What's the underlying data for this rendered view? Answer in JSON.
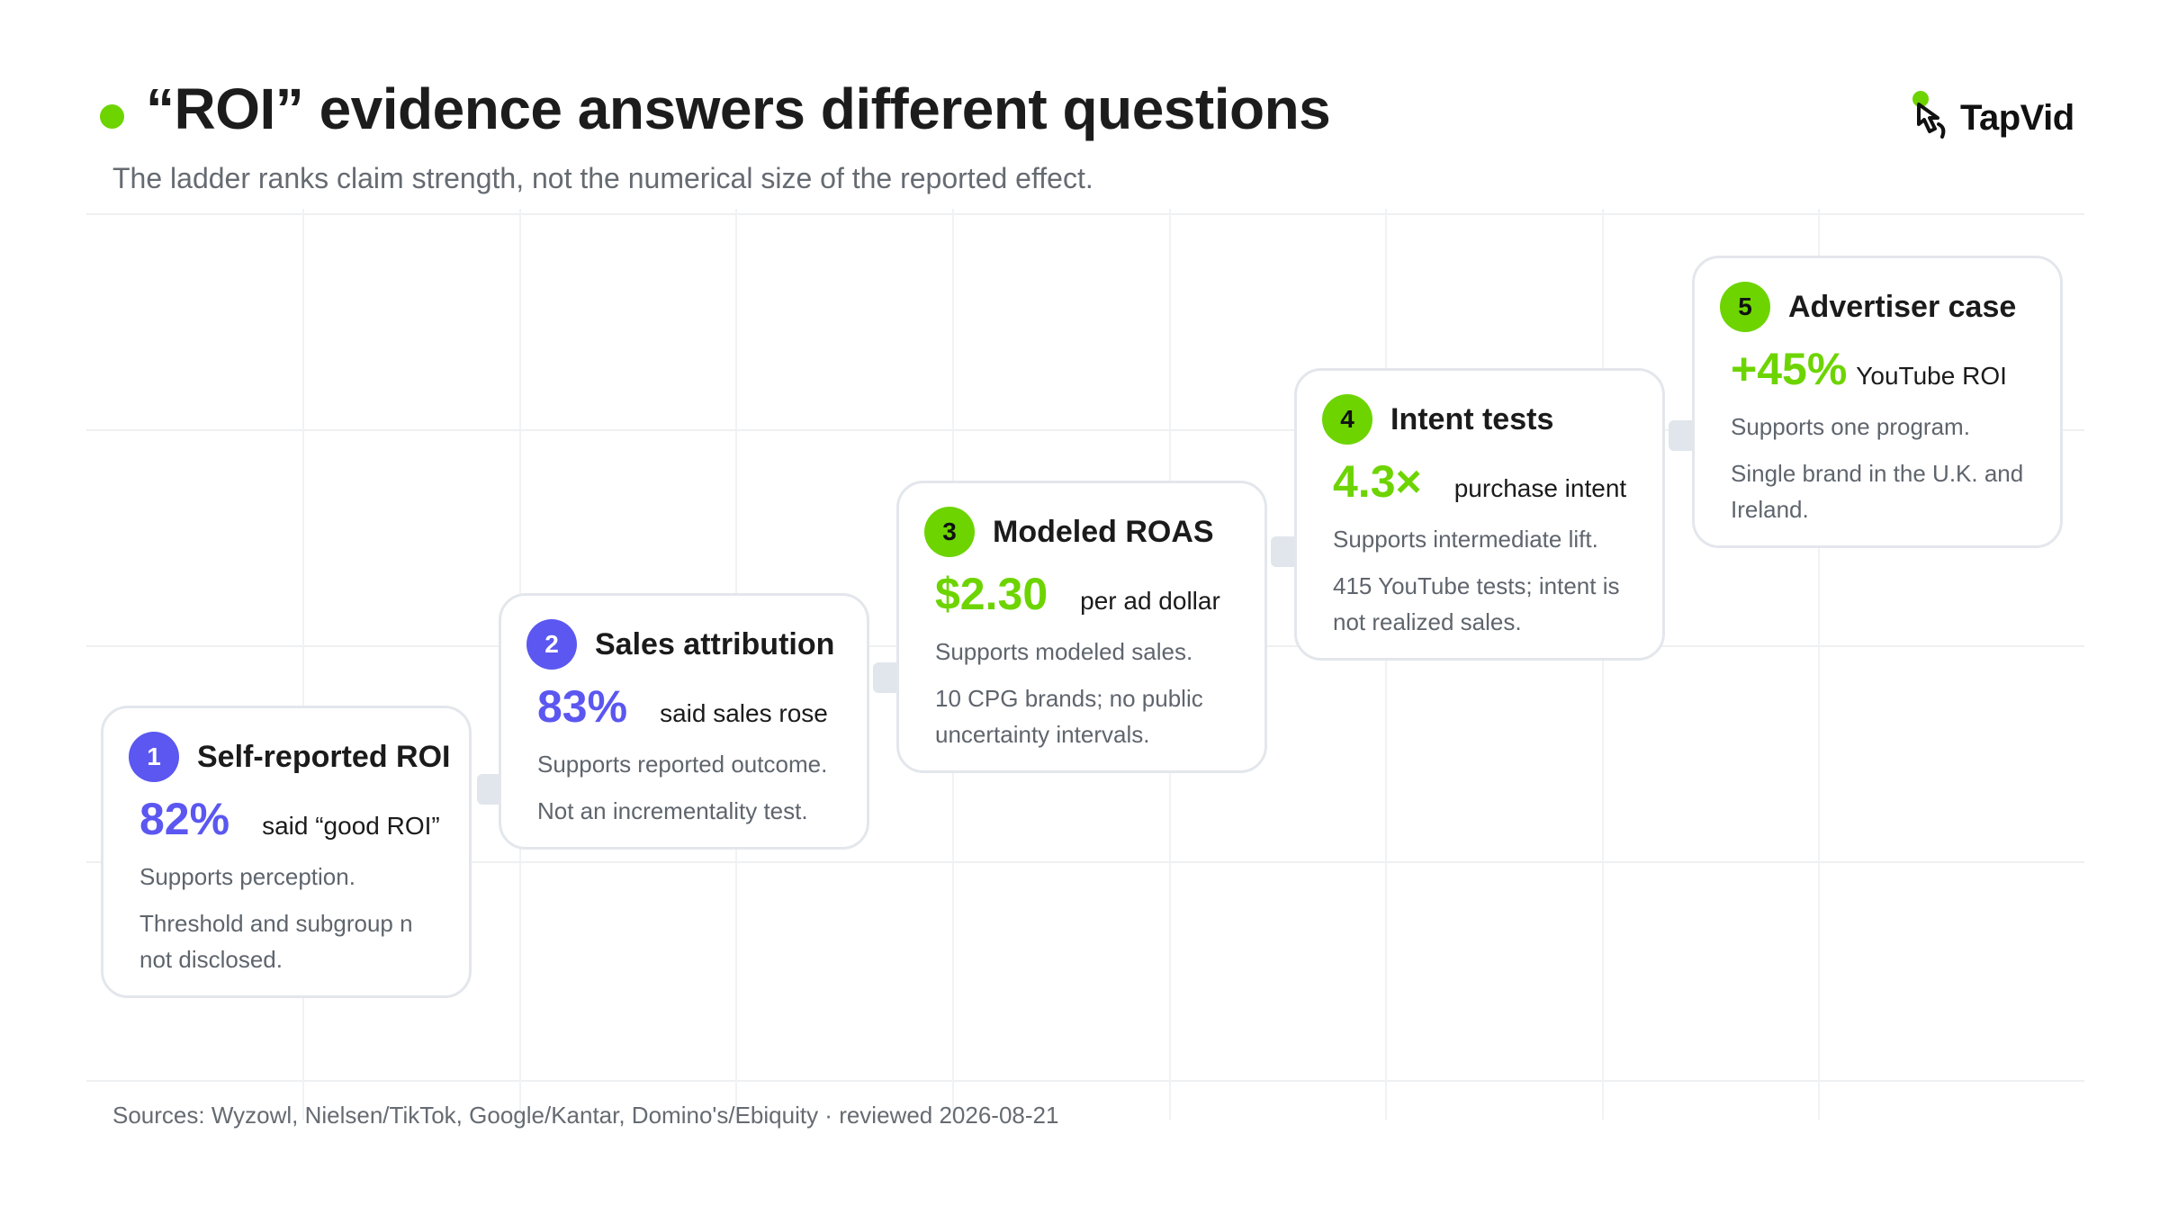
{
  "header": {
    "title": "“ROI” evidence answers different questions",
    "subtitle": "The ladder ranks claim strength, not the numerical size of the reported effect."
  },
  "logo": {
    "text": "TapVid",
    "icon": "pointer-hand-icon"
  },
  "steps": [
    {
      "number": "1",
      "title": "Self-reported ROI",
      "stat": "82%",
      "stat_label": "said “good ROI”",
      "note": "Supports perception.",
      "detail": "Threshold and subgroup n not disclosed.",
      "accent": "#5b57f0"
    },
    {
      "number": "2",
      "title": "Sales attribution",
      "stat": "83%",
      "stat_label": "said sales rose",
      "note": "Supports reported outcome.",
      "detail": "Not an incrementality test.",
      "accent": "#5b57f0"
    },
    {
      "number": "3",
      "title": "Modeled ROAS",
      "stat": "$2.30",
      "stat_label": "per ad dollar",
      "note": "Supports modeled sales.",
      "detail": "10 CPG brands; no public uncertainty intervals.",
      "accent": "#6dd400"
    },
    {
      "number": "4",
      "title": "Intent tests",
      "stat": "4.3×",
      "stat_label": "purchase intent",
      "note": "Supports intermediate lift.",
      "detail": "415 YouTube tests; intent is not realized sales.",
      "accent": "#6dd400"
    },
    {
      "number": "5",
      "title": "Advertiser case",
      "stat": "+45%",
      "stat_label": "YouTube ROI",
      "note": "Supports one program.",
      "detail": "Single brand in the U.K. and Ireland.",
      "accent": "#6dd400"
    }
  ],
  "footer": {
    "sources": "Sources: Wyzowl, Nielsen/TikTok, Google/Kantar, Domino's/Ebiquity · reviewed 2026-08-21"
  }
}
